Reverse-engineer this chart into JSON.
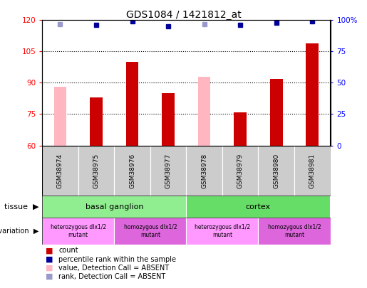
{
  "title": "GDS1084 / 1421812_at",
  "samples": [
    "GSM38974",
    "GSM38975",
    "GSM38976",
    "GSM38977",
    "GSM38978",
    "GSM38979",
    "GSM38980",
    "GSM38981"
  ],
  "count_values": [
    null,
    83,
    100,
    85,
    null,
    76,
    92,
    109
  ],
  "count_absent_values": [
    88,
    null,
    null,
    null,
    93,
    null,
    null,
    null
  ],
  "percentile_rank": [
    null,
    96,
    99,
    95,
    null,
    96,
    98,
    99
  ],
  "percentile_rank_absent": [
    97,
    null,
    null,
    null,
    97,
    null,
    null,
    null
  ],
  "ylim_left": [
    60,
    120
  ],
  "ylim_right": [
    0,
    100
  ],
  "yticks_left": [
    60,
    75,
    90,
    105,
    120
  ],
  "yticks_right": [
    0,
    25,
    50,
    75,
    100
  ],
  "ytick_labels_right": [
    "0",
    "25",
    "50",
    "75",
    "100%"
  ],
  "tissue_groups": [
    {
      "label": "basal ganglion",
      "start": 0,
      "end": 4,
      "color": "#90ee90"
    },
    {
      "label": "cortex",
      "start": 4,
      "end": 8,
      "color": "#66dd66"
    }
  ],
  "genotype_groups": [
    {
      "label": "heterozygous dlx1/2\nmutant",
      "start": 0,
      "end": 2,
      "color": "#ff99ff"
    },
    {
      "label": "homozygous dlx1/2\nmutant",
      "start": 2,
      "end": 4,
      "color": "#dd66dd"
    },
    {
      "label": "heterozygous dlx1/2\nmutant",
      "start": 4,
      "end": 6,
      "color": "#ff99ff"
    },
    {
      "label": "homozygous dlx1/2\nmutant",
      "start": 6,
      "end": 8,
      "color": "#dd66dd"
    }
  ],
  "count_color": "#cc0000",
  "count_absent_color": "#ffb6c1",
  "percentile_color": "#000099",
  "percentile_absent_color": "#9999cc"
}
